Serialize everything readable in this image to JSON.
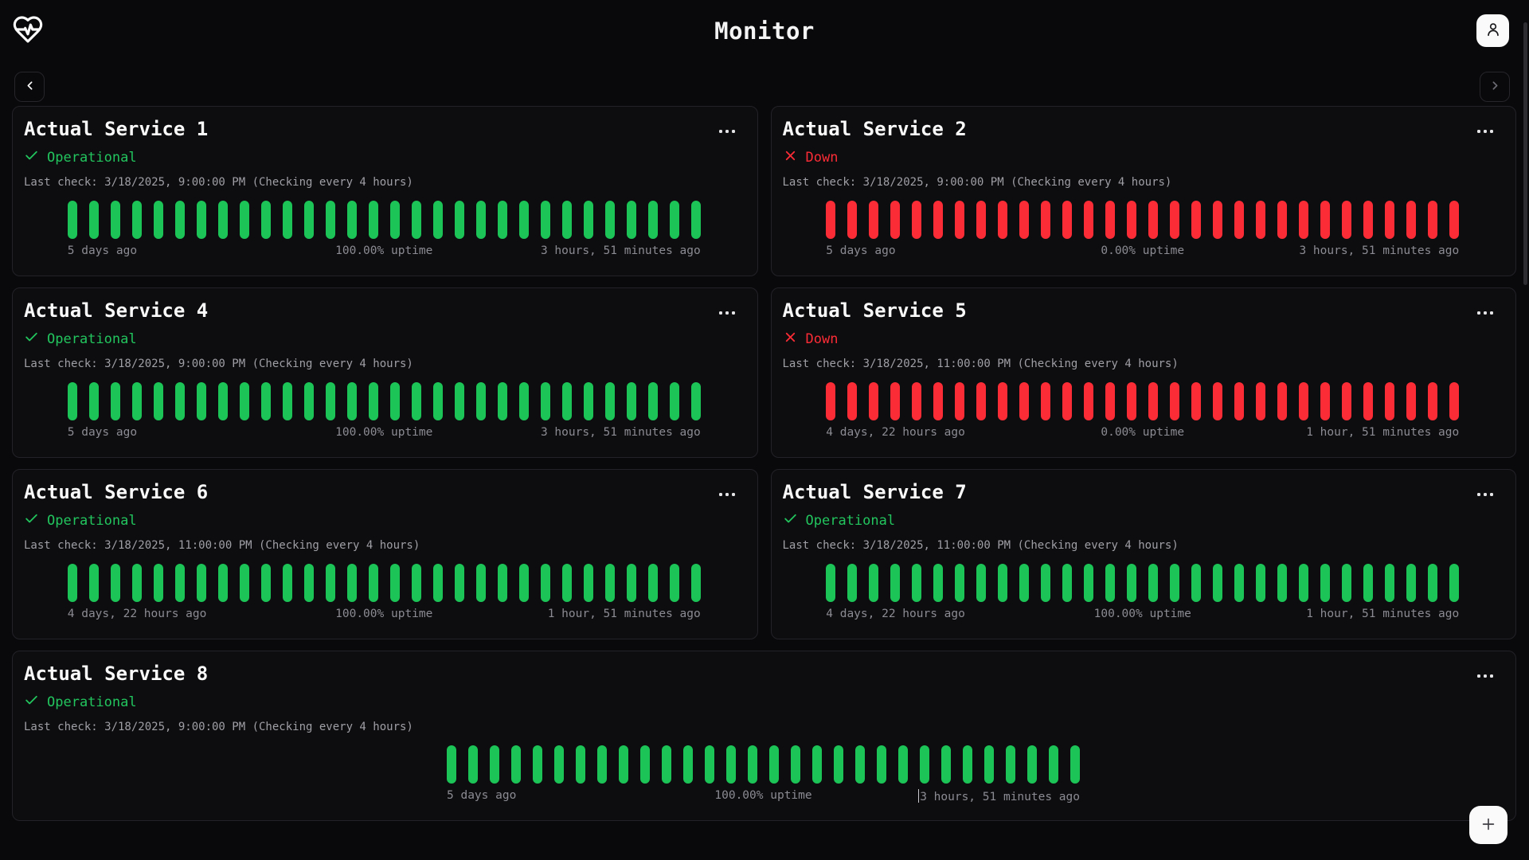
{
  "header": {
    "title": "Monitor",
    "logo_icon": "heart-pulse-icon",
    "user_icon": "user-icon"
  },
  "nav": {
    "prev_icon": "chevron-left-icon",
    "next_icon": "chevron-right-icon"
  },
  "fab": {
    "plus_icon": "plus-icon"
  },
  "colors": {
    "background": "#09090b",
    "card": "#0d0d0f",
    "border": "#222228",
    "up": "#1cc457",
    "up_text": "#22c55e",
    "down": "#fb2c36",
    "muted": "#9f9fa6"
  },
  "status_history": {
    "bar_count": 30,
    "bar_states": [
      "up",
      "down"
    ]
  },
  "services": [
    {
      "name": "Actual Service 1",
      "status": "up",
      "status_label": "Operational",
      "last_check": "Last check: 3/18/2025, 9:00:00 PM (Checking every 4 hours)",
      "bars": 30,
      "from": "5 days ago",
      "uptime": "100.00% uptime",
      "to": "3 hours, 51 minutes ago",
      "full_width": false,
      "caret": false
    },
    {
      "name": "Actual Service 2",
      "status": "down",
      "status_label": "Down",
      "last_check": "Last check: 3/18/2025, 9:00:00 PM (Checking every 4 hours)",
      "bars": 30,
      "from": "5 days ago",
      "uptime": "0.00% uptime",
      "to": "3 hours, 51 minutes ago",
      "full_width": false,
      "caret": false
    },
    {
      "name": "Actual Service 4",
      "status": "up",
      "status_label": "Operational",
      "last_check": "Last check: 3/18/2025, 9:00:00 PM (Checking every 4 hours)",
      "bars": 30,
      "from": "5 days ago",
      "uptime": "100.00% uptime",
      "to": "3 hours, 51 minutes ago",
      "full_width": false,
      "caret": false
    },
    {
      "name": "Actual Service 5",
      "status": "down",
      "status_label": "Down",
      "last_check": "Last check: 3/18/2025, 11:00:00 PM (Checking every 4 hours)",
      "bars": 30,
      "from": "4 days, 22 hours ago",
      "uptime": "0.00% uptime",
      "to": "1 hour, 51 minutes ago",
      "full_width": false,
      "caret": false
    },
    {
      "name": "Actual Service 6",
      "status": "up",
      "status_label": "Operational",
      "last_check": "Last check: 3/18/2025, 11:00:00 PM (Checking every 4 hours)",
      "bars": 30,
      "from": "4 days, 22 hours ago",
      "uptime": "100.00% uptime",
      "to": "1 hour, 51 minutes ago",
      "full_width": false,
      "caret": false
    },
    {
      "name": "Actual Service 7",
      "status": "up",
      "status_label": "Operational",
      "last_check": "Last check: 3/18/2025, 11:00:00 PM (Checking every 4 hours)",
      "bars": 30,
      "from": "4 days, 22 hours ago",
      "uptime": "100.00% uptime",
      "to": "1 hour, 51 minutes ago",
      "full_width": false,
      "caret": false
    },
    {
      "name": "Actual Service 8",
      "status": "up",
      "status_label": "Operational",
      "last_check": "Last check: 3/18/2025, 9:00:00 PM (Checking every 4 hours)",
      "bars": 30,
      "from": "5 days ago",
      "uptime": "100.00% uptime",
      "to": "3 hours, 51 minutes ago",
      "full_width": true,
      "caret": true
    }
  ]
}
